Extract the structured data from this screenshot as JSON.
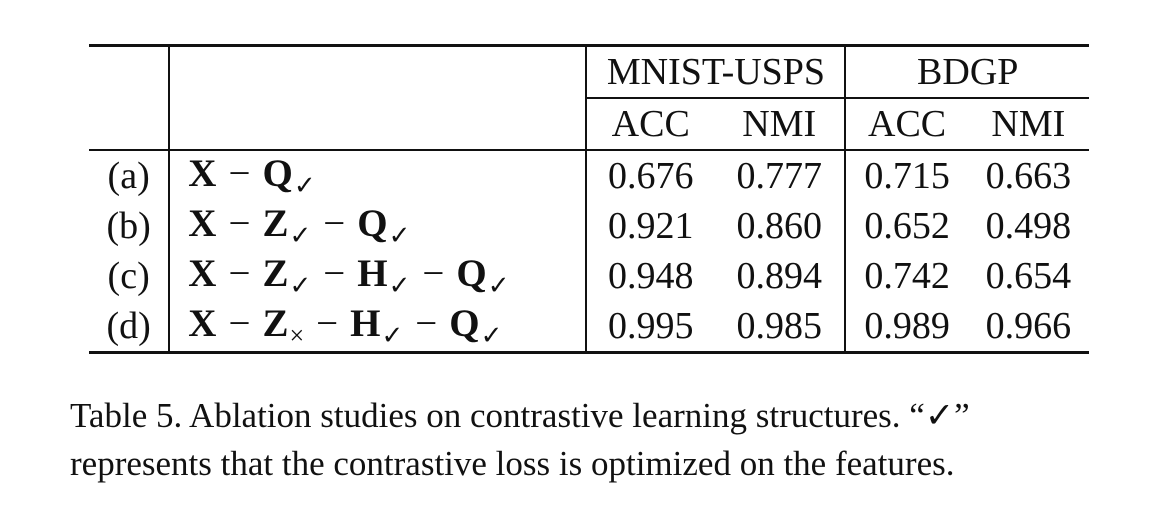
{
  "table": {
    "headers": {
      "group_1": "MNIST-USPS",
      "group_2": "BDGP",
      "sub": [
        "ACC",
        "NMI",
        "ACC",
        "NMI"
      ]
    },
    "operator": "−",
    "rows": [
      {
        "id": "(a)",
        "terms": [
          {
            "sym": "X",
            "mark": ""
          },
          {
            "sym": "Q",
            "mark": "✓"
          }
        ],
        "values": [
          "0.676",
          "0.777",
          "0.715",
          "0.663"
        ]
      },
      {
        "id": "(b)",
        "terms": [
          {
            "sym": "X",
            "mark": ""
          },
          {
            "sym": "Z",
            "mark": "✓"
          },
          {
            "sym": "Q",
            "mark": "✓"
          }
        ],
        "values": [
          "0.921",
          "0.860",
          "0.652",
          "0.498"
        ]
      },
      {
        "id": "(c)",
        "terms": [
          {
            "sym": "X",
            "mark": ""
          },
          {
            "sym": "Z",
            "mark": "✓"
          },
          {
            "sym": "H",
            "mark": "✓"
          },
          {
            "sym": "Q",
            "mark": "✓"
          }
        ],
        "values": [
          "0.948",
          "0.894",
          "0.742",
          "0.654"
        ]
      },
      {
        "id": "(d)",
        "terms": [
          {
            "sym": "X",
            "mark": ""
          },
          {
            "sym": "Z",
            "mark": "×"
          },
          {
            "sym": "H",
            "mark": "✓"
          },
          {
            "sym": "Q",
            "mark": "✓"
          }
        ],
        "values": [
          "0.995",
          "0.985",
          "0.989",
          "0.966"
        ]
      }
    ]
  },
  "caption": {
    "line1": "Table 5. Ablation studies on contrastive learning structures. “✓”",
    "line2": "represents that the contrastive loss is optimized on the features."
  }
}
